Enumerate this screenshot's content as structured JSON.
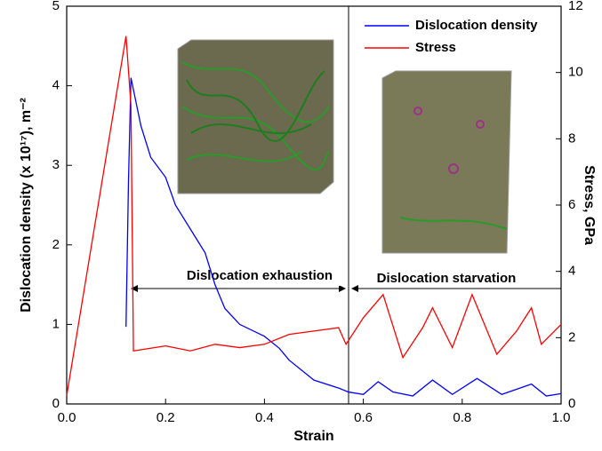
{
  "chart_data": {
    "type": "line",
    "x_label": "Strain",
    "y_label": "Dislocation density (x 10¹⁷), m⁻²",
    "y2_label": "Stress, GPa",
    "xlim": [
      0,
      1
    ],
    "xticks": [
      {
        "value": 0,
        "label": "0.0"
      },
      0.2,
      0.4,
      0.6,
      0.8,
      {
        "value": 1,
        "label": "1.0"
      }
    ],
    "ylim": [
      0,
      5
    ],
    "yticks": [
      0,
      1,
      2,
      3,
      4,
      5
    ],
    "y2lim": [
      0,
      12
    ],
    "y2ticks": [
      0,
      2,
      4,
      6,
      8,
      10,
      12
    ],
    "legend": "upper right",
    "annotations": [
      "Dislocation exhaustion",
      "Dislocation starvation"
    ],
    "series": [
      {
        "name": "Dislocation density",
        "color": "#0000ff",
        "x": [
          0.12,
          0.125,
          0.13,
          0.14,
          0.15,
          0.17,
          0.2,
          0.22,
          0.25,
          0.28,
          0.3,
          0.32,
          0.35,
          0.4,
          0.43,
          0.45,
          0.5,
          0.55,
          0.57,
          0.6,
          0.63,
          0.66,
          0.7,
          0.74,
          0.78,
          0.83,
          0.88,
          0.94,
          0.97,
          1.0
        ],
        "values": [
          0.97,
          2.8,
          4.1,
          3.8,
          3.5,
          3.1,
          2.85,
          2.5,
          2.2,
          1.9,
          1.5,
          1.2,
          1.0,
          0.85,
          0.7,
          0.55,
          0.3,
          0.2,
          0.15,
          0.12,
          0.28,
          0.15,
          0.1,
          0.3,
          0.12,
          0.32,
          0.12,
          0.25,
          0.1,
          0.13
        ]
      },
      {
        "name": "Stress",
        "color": "#ff0000",
        "axis": "y2",
        "x": [
          0,
          0.12,
          0.13,
          0.135,
          0.2,
          0.25,
          0.3,
          0.35,
          0.4,
          0.45,
          0.5,
          0.55,
          0.565,
          0.6,
          0.64,
          0.68,
          0.72,
          0.74,
          0.78,
          0.82,
          0.87,
          0.91,
          0.94,
          0.96,
          1.0
        ],
        "values": [
          0.25,
          11.1,
          9.0,
          1.6,
          1.75,
          1.6,
          1.8,
          1.7,
          1.8,
          2.1,
          2.2,
          2.3,
          1.8,
          2.6,
          3.3,
          1.4,
          2.3,
          2.9,
          1.7,
          3.3,
          1.5,
          2.2,
          2.9,
          1.8,
          2.4
        ]
      }
    ]
  }
}
